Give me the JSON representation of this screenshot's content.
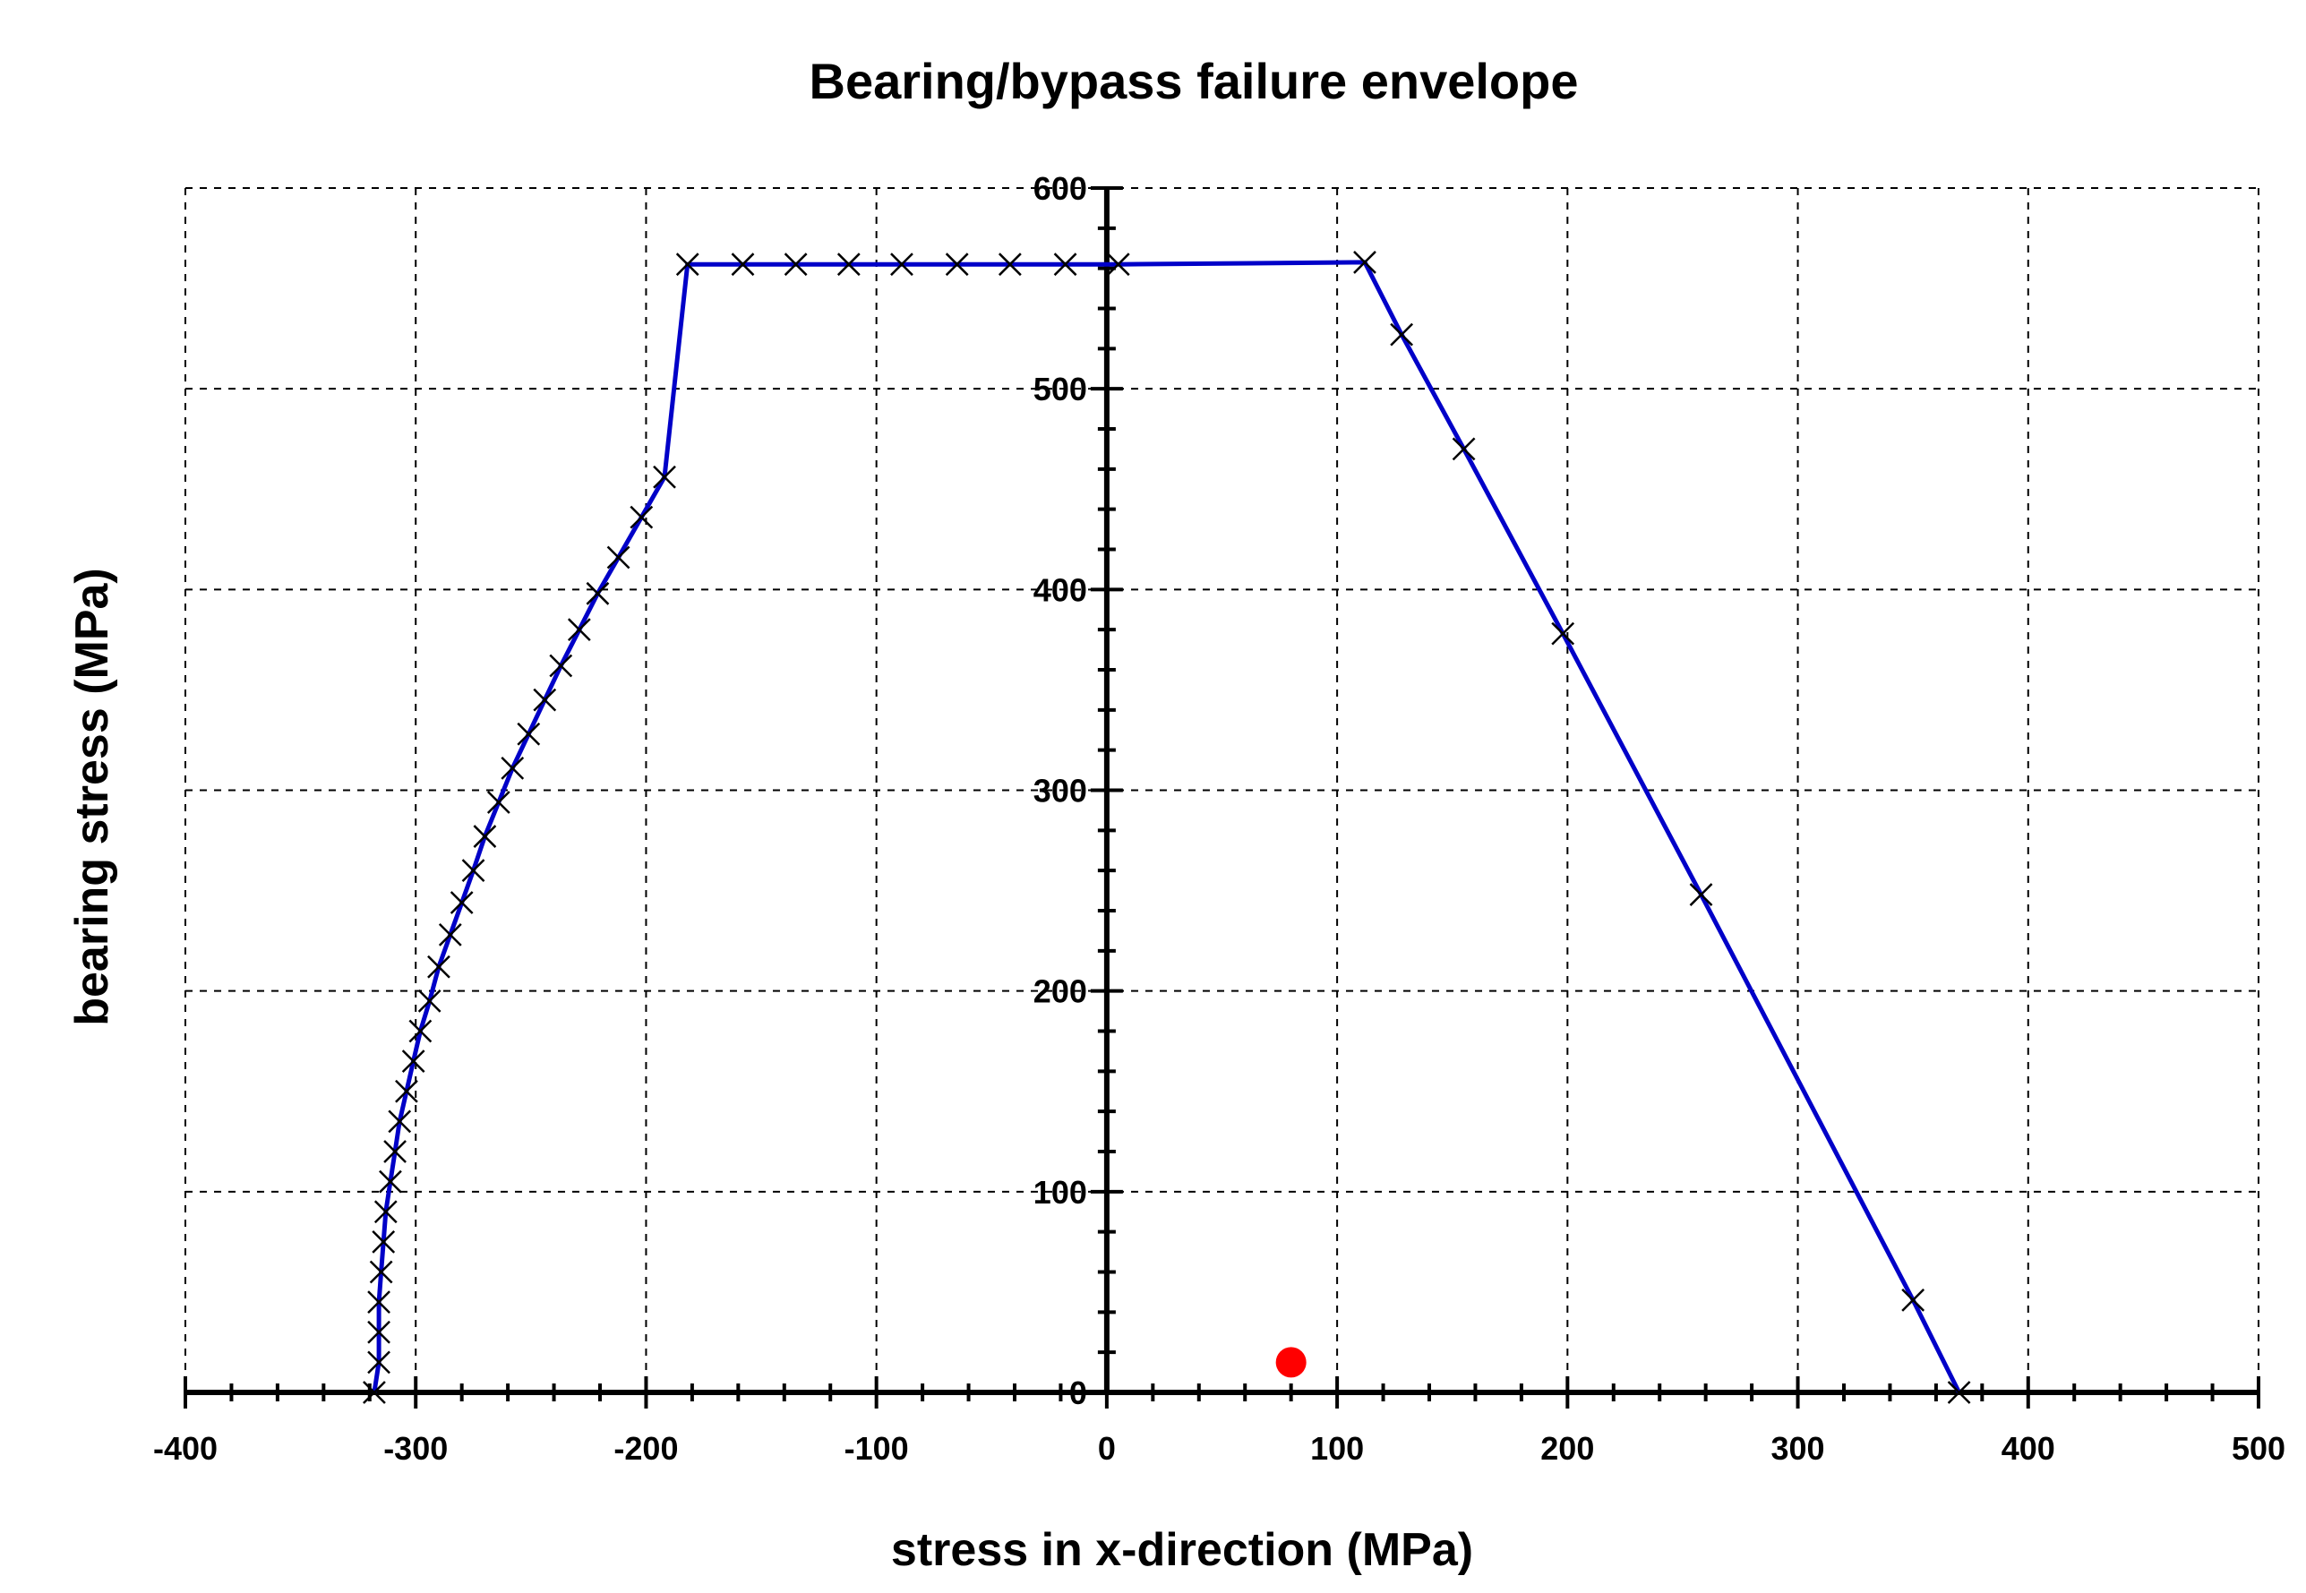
{
  "chart_data": {
    "type": "line",
    "title": "Bearing/bypass failure envelope",
    "xlabel": "stress in x-direction (MPa)",
    "ylabel": "bearing stress (MPa)",
    "xlim": [
      -400,
      500
    ],
    "ylim": [
      0,
      600
    ],
    "xticks": [
      -400,
      -300,
      -200,
      -100,
      0,
      100,
      200,
      300,
      400,
      500
    ],
    "yticks": [
      0,
      100,
      200,
      300,
      400,
      500,
      600
    ],
    "xtick_labels": [
      "-400",
      "-300",
      "-200",
      "-100",
      "0",
      "100",
      "200",
      "300",
      "400",
      "500"
    ],
    "ytick_labels": [
      "0",
      "100",
      "200",
      "300",
      "400",
      "500",
      "600"
    ],
    "grid": true,
    "line_color": "#0000c8",
    "marker_color": "#000000",
    "point_color": "#ff0000",
    "series": [
      {
        "marker": "x",
        "x": [
          -318,
          -316,
          -316,
          -316,
          -315,
          -314,
          -313,
          -311,
          -309,
          -307,
          -304,
          -301,
          -298,
          -294,
          -290,
          -285,
          -280,
          -275,
          -270,
          -264,
          -258,
          -251,
          -244,
          -237,
          -229,
          -221,
          -212,
          -202,
          -192,
          -182,
          -158,
          -135,
          -112,
          -89,
          -65,
          -42,
          -18,
          5,
          112,
          128,
          155,
          198,
          258,
          350,
          370
        ],
        "y": [
          0,
          15,
          30,
          45,
          60,
          75,
          90,
          105,
          120,
          135,
          150,
          165,
          180,
          195,
          212,
          228,
          244,
          260,
          277,
          294,
          311,
          328,
          345,
          362,
          380,
          398,
          416,
          436,
          456,
          562,
          562,
          562,
          562,
          562,
          562,
          562,
          562,
          562,
          563,
          527,
          470,
          378,
          248,
          46,
          0
        ]
      },
      {
        "marker": "circle",
        "x": [
          80
        ],
        "y": [
          15
        ]
      }
    ]
  }
}
